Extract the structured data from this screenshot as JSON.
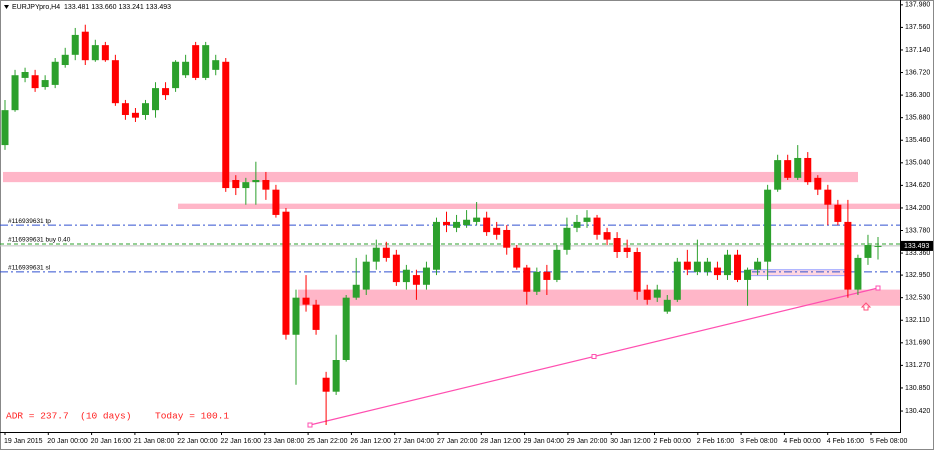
{
  "chart_data": {
    "type": "candlestick",
    "header": "EURJPYpro,H4  133.481 133.660 133.241 133.493",
    "up_color": "#2ca02c",
    "down_color": "#ff0000",
    "candles": {
      "open": [
        135.37,
        136.02,
        136.62,
        136.67,
        136.45,
        136.49,
        136.86,
        137.05,
        137.48,
        136.95,
        137.23,
        136.95,
        136.15,
        135.97,
        135.93,
        136.02,
        136.43,
        136.43,
        136.67,
        137.23,
        136.62,
        136.77,
        136.92,
        134.72,
        134.57,
        134.68,
        134.72,
        134.54,
        134.13,
        131.84,
        132.53,
        132.4,
        131.04,
        130.78,
        131.37,
        132.53,
        132.68,
        133.2,
        133.46,
        133.33,
        132.82,
        132.95,
        132.77,
        133.05,
        133.94,
        133.83,
        133.88,
        133.94,
        134.02,
        133.83,
        133.79,
        133.46,
        133.09,
        132.64,
        133.01,
        132.86,
        133.42,
        133.83,
        133.94,
        134.02,
        133.75,
        133.64,
        133.46,
        133.38,
        132.68,
        132.53,
        132.27,
        132.49,
        133.2,
        133.01,
        133.01,
        133.09,
        132.95,
        133.33,
        132.86,
        133.05,
        133.2,
        134.54,
        135.09,
        134.76,
        135.13,
        134.76,
        134.54,
        134.26,
        133.94,
        132.68,
        133.27,
        133.481
      ],
      "high": [
        136.21,
        136.77,
        136.81,
        136.77,
        136.67,
        136.99,
        137.18,
        137.55,
        137.61,
        137.33,
        137.29,
        137.05,
        136.21,
        136.06,
        136.21,
        136.54,
        136.54,
        136.95,
        137.05,
        137.29,
        137.29,
        137.05,
        136.99,
        134.81,
        134.76,
        135.06,
        134.87,
        134.63,
        134.2,
        132.68,
        132.95,
        132.49,
        131.15,
        131.84,
        132.58,
        133.27,
        133.33,
        133.61,
        133.57,
        133.42,
        133.14,
        133.05,
        133.2,
        134.02,
        134.13,
        134.07,
        134.16,
        134.31,
        134.13,
        133.94,
        133.88,
        133.51,
        133.14,
        133.09,
        133.14,
        133.51,
        134.02,
        134.07,
        134.16,
        134.07,
        133.83,
        133.75,
        133.61,
        133.46,
        132.77,
        132.77,
        132.58,
        133.27,
        133.42,
        133.61,
        133.27,
        133.2,
        133.42,
        133.42,
        133.09,
        133.27,
        134.63,
        135.19,
        135.19,
        135.37,
        135.24,
        134.81,
        134.63,
        134.35,
        134.35,
        133.33,
        133.7,
        133.66
      ],
      "low": [
        135.28,
        135.99,
        136.54,
        136.36,
        136.4,
        136.43,
        136.81,
        136.95,
        136.86,
        136.92,
        136.92,
        136.1,
        135.84,
        135.8,
        135.84,
        135.88,
        136.21,
        136.36,
        136.62,
        136.58,
        136.58,
        136.67,
        134.5,
        134.44,
        134.26,
        134.26,
        134.35,
        134.02,
        131.75,
        130.91,
        132.27,
        131.84,
        130.16,
        130.72,
        131.34,
        132.49,
        132.58,
        133.05,
        133.2,
        132.75,
        132.68,
        132.49,
        132.68,
        132.95,
        133.75,
        133.75,
        133.83,
        133.88,
        133.68,
        133.61,
        133.33,
        133.05,
        132.4,
        132.58,
        132.58,
        132.82,
        133.33,
        133.75,
        133.83,
        133.61,
        133.51,
        133.27,
        133.27,
        132.49,
        132.4,
        132.45,
        132.23,
        132.45,
        132.95,
        132.95,
        132.94,
        132.86,
        132.86,
        132.82,
        132.38,
        132.95,
        132.86,
        134.5,
        134.72,
        134.72,
        134.63,
        134.44,
        133.88,
        133.88,
        132.53,
        132.58,
        133.14,
        133.24
      ],
      "close": [
        136.02,
        136.67,
        136.73,
        136.43,
        136.58,
        136.92,
        137.05,
        137.42,
        136.95,
        137.23,
        136.95,
        136.15,
        135.93,
        135.88,
        136.15,
        136.43,
        136.3,
        136.92,
        136.92,
        136.62,
        137.23,
        136.95,
        134.57,
        134.57,
        134.68,
        134.72,
        134.54,
        134.07,
        131.84,
        132.53,
        132.4,
        131.93,
        130.78,
        131.37,
        132.53,
        132.77,
        133.2,
        133.46,
        133.27,
        132.82,
        133.05,
        132.77,
        133.09,
        133.94,
        133.88,
        133.94,
        133.98,
        134.02,
        133.75,
        133.7,
        133.46,
        133.09,
        132.64,
        133.01,
        132.86,
        133.42,
        133.83,
        133.94,
        134.02,
        133.7,
        133.61,
        133.38,
        133.38,
        132.64,
        132.49,
        132.68,
        132.49,
        133.2,
        133.05,
        133.2,
        133.2,
        132.95,
        133.33,
        132.86,
        133.05,
        133.2,
        134.54,
        135.09,
        134.76,
        135.13,
        134.68,
        134.54,
        134.26,
        133.94,
        132.68,
        133.27,
        133.51,
        133.493
      ]
    },
    "ylim": [
      130.03,
      138.07
    ],
    "yticks": [
      {
        "value": 137.98,
        "label": "137.980"
      },
      {
        "value": 137.56,
        "label": "137.560"
      },
      {
        "value": 137.14,
        "label": "137.140"
      },
      {
        "value": 136.72,
        "label": "136.720"
      },
      {
        "value": 136.3,
        "label": "136.300"
      },
      {
        "value": 135.88,
        "label": "135.880"
      },
      {
        "value": 135.46,
        "label": "135.460"
      },
      {
        "value": 135.04,
        "label": "135.040"
      },
      {
        "value": 134.62,
        "label": "134.620"
      },
      {
        "value": 134.2,
        "label": "134.200"
      },
      {
        "value": 133.78,
        "label": "133.780"
      },
      {
        "value": 133.36,
        "label": "133.360"
      },
      {
        "value": 132.95,
        "label": "132.950"
      },
      {
        "value": 132.53,
        "label": "132.530"
      },
      {
        "value": 132.11,
        "label": "132.110"
      },
      {
        "value": 131.69,
        "label": "131.690"
      },
      {
        "value": 131.27,
        "label": "131.270"
      },
      {
        "value": 130.85,
        "label": "130.850"
      },
      {
        "value": 130.42,
        "label": "130.420"
      }
    ],
    "x_labels": [
      "19 Jan 2015",
      "20 Jan 00:00",
      "20 Jan 16:00",
      "21 Jan 08:00",
      "22 Jan 00:00",
      "22 Jan 16:00",
      "23 Jan 08:00",
      "25 Jan 22:00",
      "26 Jan 12:00",
      "27 Jan 04:00",
      "27 Jan 20:00",
      "28 Jan 12:00",
      "29 Jan 04:00",
      "29 Jan 20:00",
      "30 Jan 12:00",
      "2 Feb 00:00",
      "2 Feb 16:00",
      "3 Feb 08:00",
      "4 Feb 00:00",
      "4 Feb 16:00",
      "5 Feb 08:00"
    ],
    "current_price": {
      "value": 133.493,
      "label": "133.493"
    },
    "levels": [
      {
        "label": "#116939631 tp",
        "value": 133.88,
        "color": "#3050d0"
      },
      {
        "label": "#116939631 buy 0.40",
        "value": 133.53,
        "color": "#2ca02c"
      },
      {
        "label": "#116939631 sl",
        "value": 133.01,
        "color": "#3050d0"
      }
    ],
    "zones": [
      {
        "top": 134.87,
        "bottom": 134.68
      },
      {
        "top": 134.28,
        "bottom": 134.18
      },
      {
        "top": 132.68,
        "bottom": 132.38
      },
      {
        "top": 133.05,
        "bottom": 132.94
      }
    ],
    "trendline": {
      "start": 130.16,
      "end": 132.71
    },
    "adr_text": "ADR = 237.7  (10 days)",
    "today_text": "Today = 100.1"
  }
}
